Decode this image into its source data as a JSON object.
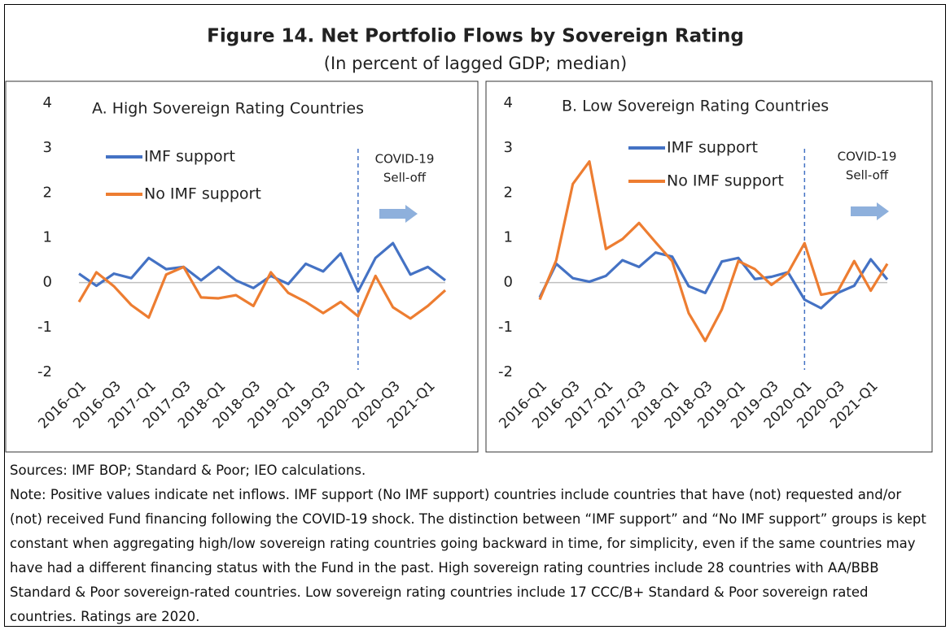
{
  "header": {
    "title": "Figure 14. Net Portfolio Flows by Sovereign Rating",
    "subtitle": "(In percent of lagged GDP; median)"
  },
  "chart_data": [
    {
      "type": "line",
      "title": "A. High Sovereign Rating Countries",
      "categories": [
        "2016-Q1",
        null,
        "2016-Q3",
        null,
        "2017-Q1",
        null,
        "2017-Q3",
        null,
        "2018-Q1",
        null,
        "2018-Q3",
        null,
        "2019-Q1",
        null,
        "2019-Q3",
        null,
        "2020-Q1",
        null,
        "2020-Q3",
        null,
        "2021-Q1",
        null
      ],
      "series": [
        {
          "name": "IMF support",
          "color": "#4472c4",
          "values": [
            0.2,
            -0.07,
            0.2,
            0.1,
            0.55,
            0.3,
            0.35,
            0.05,
            0.35,
            0.05,
            -0.12,
            0.15,
            -0.03,
            0.42,
            0.25,
            0.65,
            -0.2,
            0.55,
            0.88,
            0.18,
            0.35,
            0.05
          ]
        },
        {
          "name": "No IMF support",
          "color": "#ed7d31",
          "values": [
            -0.43,
            0.23,
            -0.08,
            -0.5,
            -0.78,
            0.18,
            0.35,
            -0.33,
            -0.35,
            -0.28,
            -0.52,
            0.23,
            -0.23,
            -0.43,
            -0.68,
            -0.43,
            -0.75,
            0.15,
            -0.55,
            -0.8,
            -0.52,
            -0.17
          ]
        }
      ],
      "ylim": [
        -2,
        4
      ],
      "yticks": [
        -2,
        -1,
        0,
        1,
        2,
        3,
        4
      ],
      "grid": false,
      "annotation": [
        "COVID-19",
        "Sell-off"
      ]
    },
    {
      "type": "line",
      "title": "B. Low Sovereign Rating Countries",
      "categories": [
        "2016-Q1",
        null,
        "2016-Q3",
        null,
        "2017-Q1",
        null,
        "2017-Q3",
        null,
        "2018-Q1",
        null,
        "2018-Q3",
        null,
        "2019-Q1",
        null,
        "2019-Q3",
        null,
        "2020-Q1",
        null,
        "2020-Q3",
        null,
        "2021-Q1",
        null
      ],
      "series": [
        {
          "name": "IMF support",
          "color": "#4472c4",
          "values": [
            -0.33,
            0.42,
            0.1,
            0.02,
            0.15,
            0.5,
            0.35,
            0.67,
            0.58,
            -0.08,
            -0.23,
            0.47,
            0.55,
            0.08,
            0.13,
            0.23,
            -0.38,
            -0.57,
            -0.23,
            -0.07,
            0.52,
            0.07
          ]
        },
        {
          "name": "No IMF support",
          "color": "#ed7d31",
          "values": [
            -0.38,
            0.5,
            2.2,
            2.7,
            0.75,
            0.97,
            1.33,
            0.9,
            0.48,
            -0.68,
            -1.3,
            -0.6,
            0.48,
            0.3,
            -0.05,
            0.22,
            0.88,
            -0.27,
            -0.2,
            0.48,
            -0.18,
            0.42
          ]
        }
      ],
      "ylim": [
        -2,
        4
      ],
      "yticks": [
        -2,
        -1,
        0,
        1,
        2,
        3,
        4
      ],
      "grid": false,
      "annotation": [
        "COVID-19",
        "Sell-off"
      ]
    }
  ],
  "footer": {
    "sources": "Sources: IMF BOP; Standard & Poor; IEO calculations.",
    "note": "Note: Positive values indicate net inflows. IMF support (No IMF support) countries include countries that have (not) requested and/or (not) received Fund financing following the COVID-19 shock. The distinction between “IMF support” and “No IMF support” groups is kept constant when aggregating high/low sovereign rating countries going backward in time, for simplicity, even if the same countries may have had a different financing status with the Fund in the past. High sovereign rating countries include 28 countries with AA/BBB Standard & Poor sovereign-rated countries. Low sovereign rating countries include 17 CCC/B+ Standard & Poor sovereign rated countries. Ratings are 2020."
  }
}
